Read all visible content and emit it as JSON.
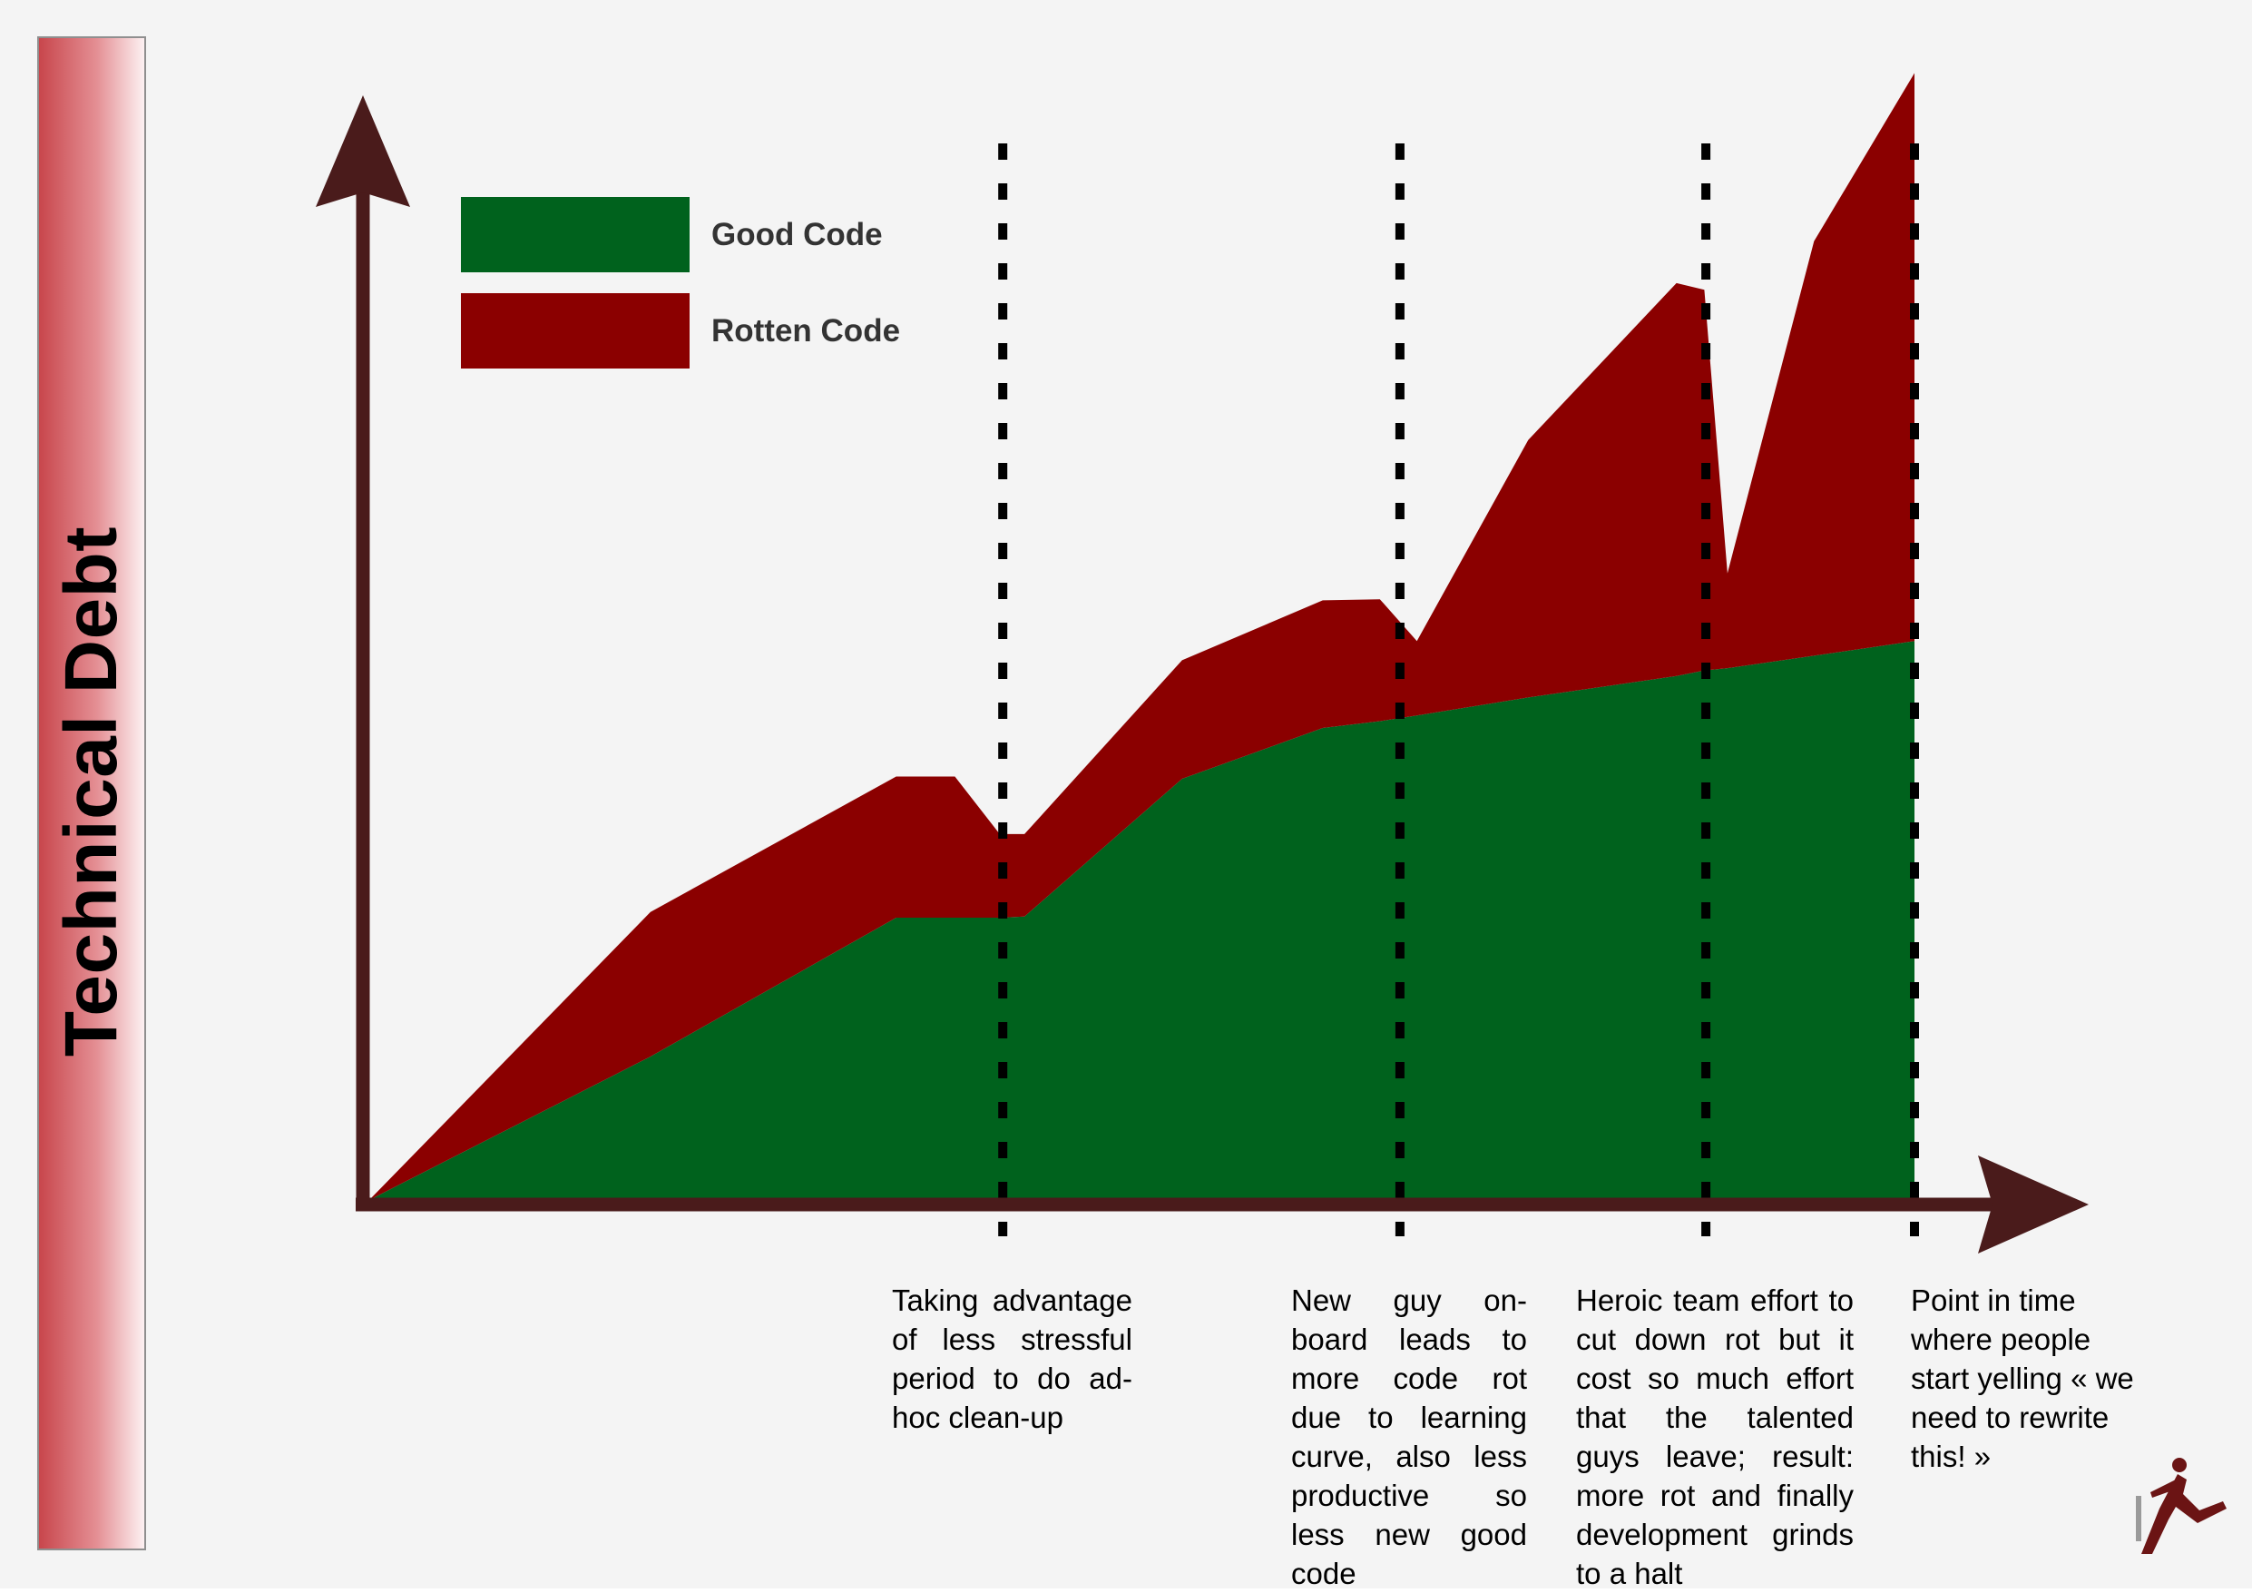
{
  "y_axis_title": "Technical Debt",
  "annotations": [
    "Taking advantage of less stressful period to do ad-hoc clean-up",
    "New guy on-board leads to more code rot due to learning curve, also less productive so less new good code",
    "Heroic team effort to cut down rot but it cost so much effort that the talented guys leave; result: more rot and finally development grinds to a halt",
    "Point in time where people start yelling « we need to rewrite this! »"
  ],
  "colors": {
    "good_code": "#00621d",
    "rotten_code": "#8b0000",
    "axis": "#4a1b1b",
    "marker": "#000000",
    "band_start": "#c8464c",
    "band_end": "#fdf1f2"
  },
  "logo": {
    "icon": "running-figure-icon"
  },
  "chart_data": {
    "type": "area",
    "stacked": true,
    "title": "",
    "xlabel": "",
    "ylabel": "Technical Debt",
    "xlim": [
      0,
      100
    ],
    "ylim": [
      0,
      100
    ],
    "x": [
      0,
      18.2,
      34.1,
      37.9,
      40.8,
      42.4,
      52.6,
      61.7,
      65.4,
      67.8,
      75.0,
      84.6,
      86.4,
      87.9,
      93.5,
      100
    ],
    "series": [
      {
        "name": "Good Code",
        "values": [
          0,
          12.7,
          25.0,
          25.0,
          25.0,
          25.1,
          37.3,
          41.8,
          42.4,
          42.9,
          44.5,
          46.4,
          46.9,
          47.1,
          48.2,
          49.5
        ]
      },
      {
        "name": "Rotten Code",
        "values": [
          0,
          12.8,
          12.5,
          12.5,
          7.4,
          7.3,
          10.5,
          11.3,
          10.8,
          6.6,
          22.8,
          34.8,
          33.7,
          8.4,
          36.7,
          50.3
        ]
      }
    ],
    "markers": [
      {
        "x": 41.0,
        "label": "Taking advantage of less stressful period to do ad-hoc clean-up"
      },
      {
        "x": 66.7,
        "label": "New guy on-board leads to more code rot due to learning curve, also less productive so less new good code"
      },
      {
        "x": 86.5,
        "label": "Heroic team effort to cut down rot but it cost so much effort that the talented guys leave; result: more rot and finally development grinds to a halt"
      },
      {
        "x": 100.0,
        "label": "Point in time where people start yelling « we need to rewrite this! »"
      }
    ],
    "legend": [
      "Good Code",
      "Rotten Code"
    ],
    "legend_position": "top-left",
    "grid": false,
    "axis_arrows": true
  }
}
